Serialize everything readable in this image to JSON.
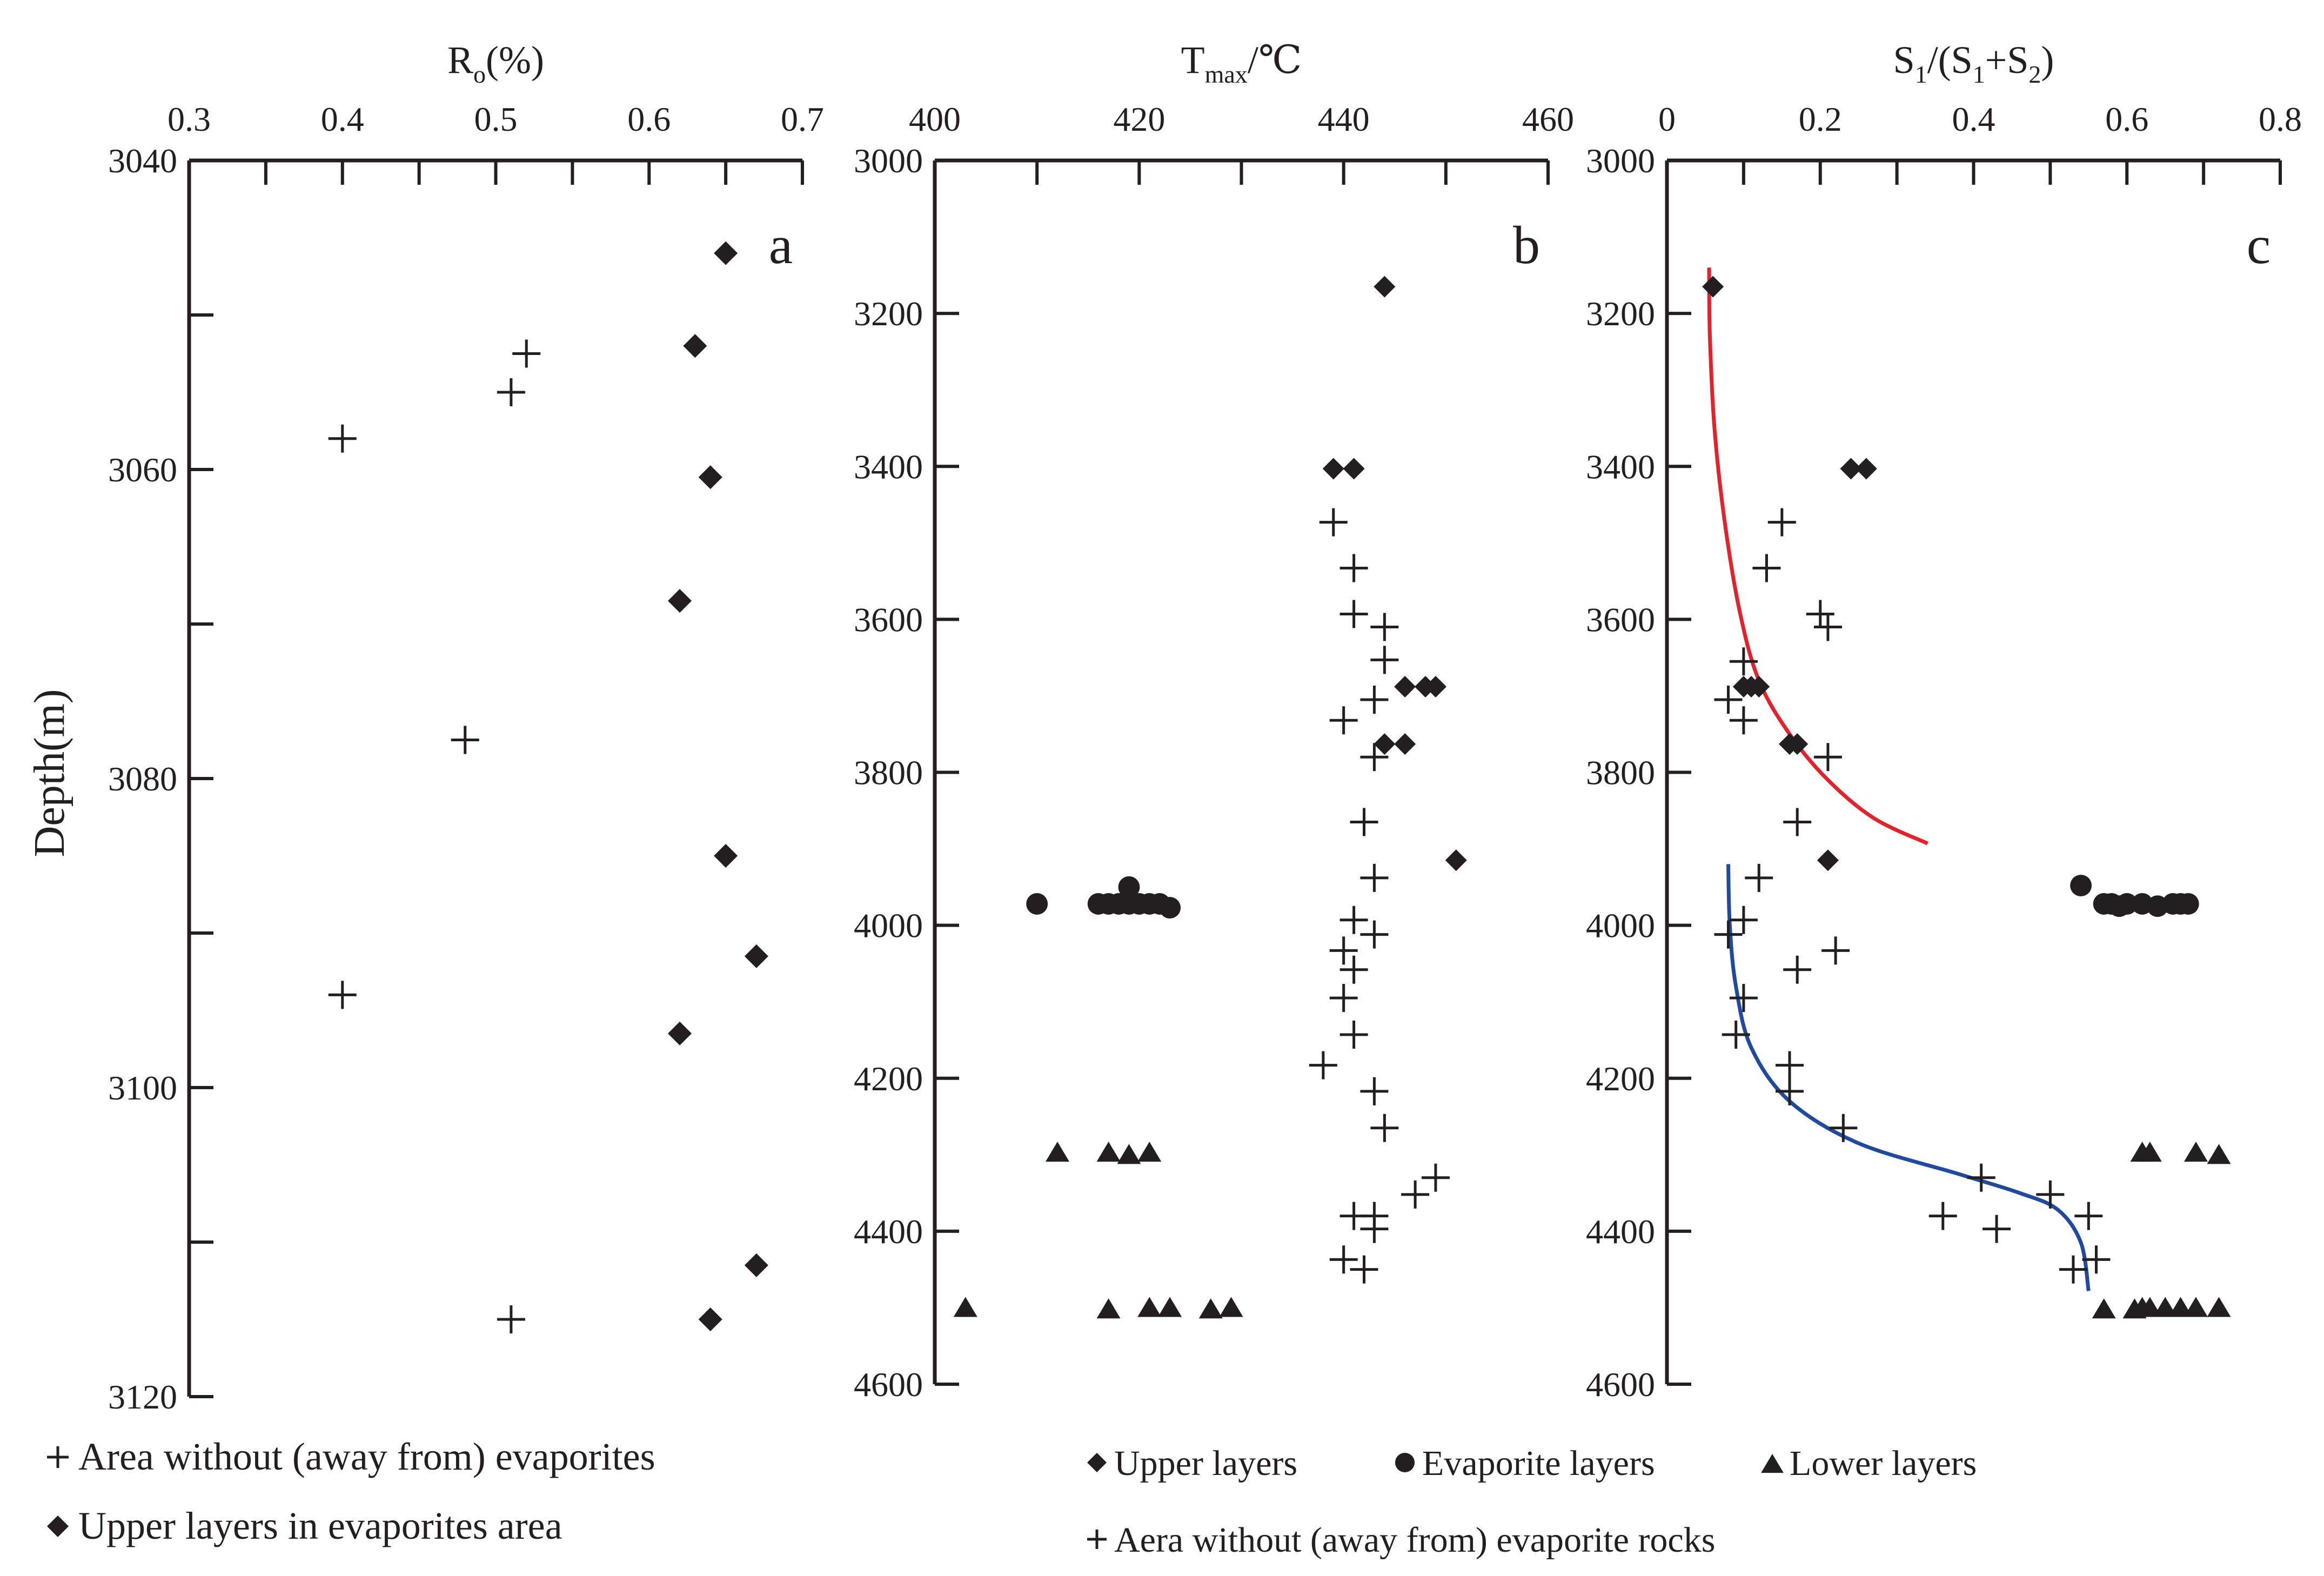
{
  "colors": {
    "ink": "#231f20",
    "red_trend": "#e3222b",
    "blue_trend": "#1f4aa0"
  },
  "chart_data": [
    {
      "id": "a",
      "type": "scatter",
      "panel_letter": "a",
      "title_main": "R",
      "title_sub": "o",
      "title_rest": "(%)",
      "ylabel": "Depth(m)",
      "xlim": [
        0.3,
        0.7
      ],
      "ylim": [
        3040,
        3120
      ],
      "x_ticks": [
        0.3,
        0.4,
        0.5,
        0.6,
        0.7
      ],
      "x_tick_labels": [
        "0.3",
        "0.4",
        "0.5",
        "0.6",
        "0.7"
      ],
      "x_minor_ticks": [
        0.35,
        0.45,
        0.55,
        0.65
      ],
      "y_ticks": [
        3040,
        3060,
        3080,
        3100,
        3120
      ],
      "y_tick_labels": [
        "3040",
        "3060",
        "3080",
        "3100",
        "3120"
      ],
      "y_minor_ticks": [
        3050,
        3070,
        3090,
        3110
      ],
      "series": [
        {
          "name": "Area without (away from) evaporites",
          "marker": "plus",
          "points": [
            [
              0.52,
              3052.5
            ],
            [
              0.51,
              3055
            ],
            [
              0.4,
              3058
            ],
            [
              0.48,
              3077.5
            ],
            [
              0.4,
              3094
            ],
            [
              0.51,
              3115
            ]
          ]
        },
        {
          "name": "Upper layers in evaporites area",
          "marker": "diamond",
          "points": [
            [
              0.65,
              3046
            ],
            [
              0.63,
              3052
            ],
            [
              0.64,
              3060.5
            ],
            [
              0.62,
              3068.5
            ],
            [
              0.65,
              3085
            ],
            [
              0.67,
              3091.5
            ],
            [
              0.62,
              3096.5
            ],
            [
              0.67,
              3111.5
            ],
            [
              0.64,
              3115
            ]
          ]
        }
      ]
    },
    {
      "id": "b",
      "type": "scatter",
      "panel_letter": "b",
      "title_main": "T",
      "title_sub": "max",
      "title_rest": "/℃",
      "xlim": [
        400,
        460
      ],
      "ylim": [
        3000,
        4600
      ],
      "x_ticks": [
        400,
        420,
        440,
        460
      ],
      "x_tick_labels": [
        "400",
        "420",
        "440",
        "460"
      ],
      "x_minor_ticks": [
        410,
        430,
        450
      ],
      "y_ticks": [
        3000,
        3200,
        3400,
        3600,
        3800,
        4000,
        4200,
        4400,
        4600
      ],
      "y_tick_labels": [
        "3000",
        "3200",
        "3400",
        "3600",
        "3800",
        "4000",
        "4200",
        "4400",
        "4600"
      ],
      "series": [
        {
          "name": "Upper layers",
          "marker": "diamond",
          "points": [
            [
              444,
              3165
            ],
            [
              439,
              3403
            ],
            [
              441,
              3403
            ],
            [
              446,
              3688
            ],
            [
              448,
              3688
            ],
            [
              449,
              3688
            ],
            [
              444,
              3763
            ],
            [
              446,
              3763
            ],
            [
              451,
              3915
            ]
          ]
        },
        {
          "name": "Evaporite layers",
          "marker": "circle",
          "points": [
            [
              410,
              3972
            ],
            [
              416,
              3972
            ],
            [
              417,
              3972
            ],
            [
              418,
              3972
            ],
            [
              419,
              3972
            ],
            [
              419,
              3950
            ],
            [
              420,
              3972
            ],
            [
              421,
              3972
            ],
            [
              422,
              3972
            ],
            [
              423,
              3977
            ]
          ]
        },
        {
          "name": "Lower layers",
          "marker": "triangle",
          "points": [
            [
              412,
              4297
            ],
            [
              417,
              4297
            ],
            [
              419,
              4300
            ],
            [
              421,
              4297
            ],
            [
              403,
              4500
            ],
            [
              417,
              4502
            ],
            [
              421,
              4500
            ],
            [
              423,
              4500
            ],
            [
              427,
              4502
            ],
            [
              429,
              4500
            ]
          ]
        },
        {
          "name": "Aera without (away from) evaporite rocks",
          "marker": "plus",
          "points": [
            [
              439,
              3473
            ],
            [
              441,
              3533
            ],
            [
              441,
              3593
            ],
            [
              444,
              3610
            ],
            [
              444,
              3653
            ],
            [
              443,
              3705
            ],
            [
              440,
              3732
            ],
            [
              443,
              3780
            ],
            [
              442,
              3865
            ],
            [
              443,
              3938
            ],
            [
              441,
              3993
            ],
            [
              443,
              4012
            ],
            [
              440,
              4033
            ],
            [
              441,
              4058
            ],
            [
              440,
              4095
            ],
            [
              441,
              4143
            ],
            [
              438,
              4183
            ],
            [
              443,
              4217
            ],
            [
              444,
              4265
            ],
            [
              449,
              4330
            ],
            [
              447,
              4352
            ],
            [
              441,
              4380
            ],
            [
              443,
              4380
            ],
            [
              443,
              4397
            ],
            [
              440,
              4437
            ],
            [
              442,
              4450
            ]
          ]
        }
      ]
    },
    {
      "id": "c",
      "type": "scatter",
      "panel_letter": "c",
      "title_main": "S",
      "title_sub": "1",
      "title_rest": "/(S",
      "title_sub2": "1",
      "title_rest2": "+S",
      "title_sub3": "2",
      "title_end": ")",
      "xlim": [
        0,
        0.8
      ],
      "ylim": [
        3000,
        4600
      ],
      "x_ticks": [
        0,
        0.2,
        0.4,
        0.6,
        0.8
      ],
      "x_tick_labels": [
        "0",
        "0.2",
        "0.4",
        "0.6",
        "0.8"
      ],
      "x_minor_ticks": [
        0.1,
        0.3,
        0.5,
        0.7
      ],
      "y_ticks": [
        3000,
        3200,
        3400,
        3600,
        3800,
        4000,
        4200,
        4400,
        4600
      ],
      "y_tick_labels": [
        "3000",
        "3200",
        "3400",
        "3600",
        "3800",
        "4000",
        "4200",
        "4400",
        "4600"
      ],
      "series": [
        {
          "name": "Upper layers",
          "marker": "diamond",
          "points": [
            [
              0.06,
              3165
            ],
            [
              0.24,
              3403
            ],
            [
              0.26,
              3403
            ],
            [
              0.1,
              3688
            ],
            [
              0.11,
              3688
            ],
            [
              0.12,
              3688
            ],
            [
              0.16,
              3763
            ],
            [
              0.17,
              3763
            ],
            [
              0.21,
              3915
            ]
          ]
        },
        {
          "name": "Evaporite layers",
          "marker": "circle",
          "points": [
            [
              0.54,
              3948
            ],
            [
              0.57,
              3972
            ],
            [
              0.58,
              3972
            ],
            [
              0.59,
              3975
            ],
            [
              0.6,
              3972
            ],
            [
              0.62,
              3972
            ],
            [
              0.64,
              3975
            ],
            [
              0.66,
              3972
            ],
            [
              0.67,
              3972
            ],
            [
              0.68,
              3972
            ]
          ]
        },
        {
          "name": "Lower layers",
          "marker": "triangle",
          "points": [
            [
              0.62,
              4297
            ],
            [
              0.63,
              4297
            ],
            [
              0.69,
              4297
            ],
            [
              0.72,
              4300
            ],
            [
              0.57,
              4502
            ],
            [
              0.61,
              4502
            ],
            [
              0.62,
              4500
            ],
            [
              0.63,
              4500
            ],
            [
              0.65,
              4500
            ],
            [
              0.67,
              4500
            ],
            [
              0.69,
              4500
            ],
            [
              0.72,
              4500
            ]
          ]
        },
        {
          "name": "Aera without (away from) evaporite rocks",
          "marker": "plus",
          "points": [
            [
              0.15,
              3473
            ],
            [
              0.13,
              3533
            ],
            [
              0.2,
              3593
            ],
            [
              0.21,
              3610
            ],
            [
              0.1,
              3655
            ],
            [
              0.08,
              3705
            ],
            [
              0.1,
              3732
            ],
            [
              0.21,
              3780
            ],
            [
              0.17,
              3865
            ],
            [
              0.12,
              3938
            ],
            [
              0.1,
              3993
            ],
            [
              0.08,
              4012
            ],
            [
              0.22,
              4033
            ],
            [
              0.17,
              4058
            ],
            [
              0.1,
              4095
            ],
            [
              0.09,
              4143
            ],
            [
              0.16,
              4183
            ],
            [
              0.16,
              4217
            ],
            [
              0.23,
              4265
            ],
            [
              0.41,
              4330
            ],
            [
              0.5,
              4352
            ],
            [
              0.36,
              4380
            ],
            [
              0.55,
              4380
            ],
            [
              0.43,
              4397
            ],
            [
              0.56,
              4437
            ],
            [
              0.53,
              4450
            ]
          ]
        }
      ],
      "trend_lines": [
        {
          "name": "upper trend",
          "color": "#e3222b",
          "points": [
            [
              0.055,
              3140
            ],
            [
              0.056,
              3230
            ],
            [
              0.062,
              3350
            ],
            [
              0.075,
              3470
            ],
            [
              0.095,
              3590
            ],
            [
              0.12,
              3680
            ],
            [
              0.16,
              3750
            ],
            [
              0.21,
              3810
            ],
            [
              0.27,
              3860
            ],
            [
              0.34,
              3893
            ]
          ]
        },
        {
          "name": "lower trend",
          "color": "#1f4aa0",
          "points": [
            [
              0.08,
              3920
            ],
            [
              0.082,
              4000
            ],
            [
              0.09,
              4080
            ],
            [
              0.11,
              4160
            ],
            [
              0.16,
              4230
            ],
            [
              0.25,
              4285
            ],
            [
              0.38,
              4325
            ],
            [
              0.46,
              4350
            ],
            [
              0.51,
              4372
            ],
            [
              0.54,
              4415
            ],
            [
              0.55,
              4478
            ]
          ]
        }
      ]
    }
  ],
  "legend_a": [
    {
      "marker": "plus",
      "label": "Area without (away from) evaporites"
    },
    {
      "marker": "diamond",
      "label": "Upper layers in evaporites area"
    }
  ],
  "legend_bc": [
    {
      "marker": "diamond",
      "label": "Upper layers"
    },
    {
      "marker": "circle",
      "label": "Evaporite layers"
    },
    {
      "marker": "triangle",
      "label": "Lower layers"
    },
    {
      "marker": "plus",
      "label": "Aera without (away from) evaporite rocks"
    }
  ]
}
